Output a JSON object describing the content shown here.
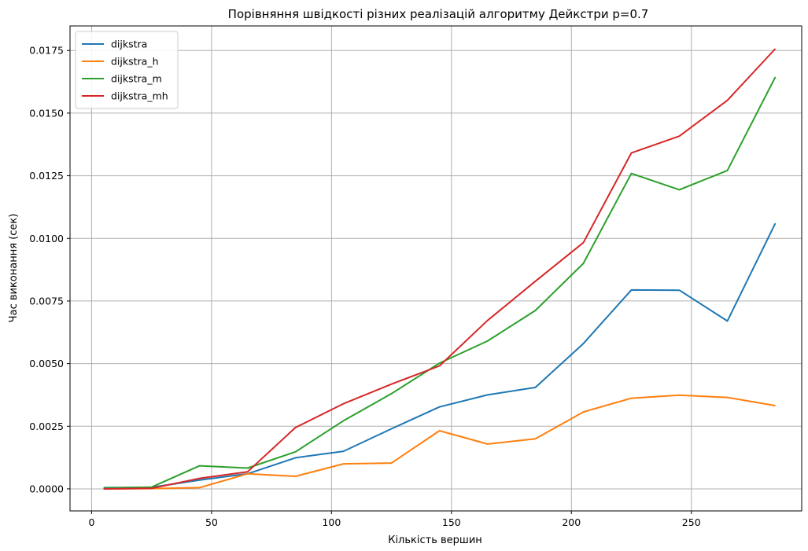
{
  "chart_data": {
    "type": "line",
    "title": "Порівняння швідкості різних реалізацій алгоритму Дейкстри p=0.7",
    "xlabel": "Кількість вершин",
    "ylabel": "Час виконання (сек)",
    "xlim": [
      -9,
      296
    ],
    "ylim": [
      -0.00088,
      0.01848
    ],
    "xticks": [
      0,
      50,
      100,
      150,
      200,
      250
    ],
    "xtick_labels": [
      "0",
      "50",
      "100",
      "150",
      "200",
      "250"
    ],
    "yticks": [
      0.0,
      0.0025,
      0.005,
      0.0075,
      0.01,
      0.0125,
      0.015,
      0.0175
    ],
    "ytick_labels": [
      "0.0000",
      "0.0025",
      "0.0050",
      "0.0075",
      "0.0100",
      "0.0125",
      "0.0150",
      "0.0175"
    ],
    "grid": true,
    "legend_position": "upper left",
    "x": [
      5,
      25,
      45,
      65,
      85,
      105,
      125,
      145,
      165,
      185,
      205,
      225,
      245,
      265,
      285
    ],
    "series": [
      {
        "name": "dijkstra",
        "color": "#1f77b4",
        "values": [
          5e-05,
          6e-05,
          0.00035,
          0.0006,
          0.00124,
          0.0015,
          0.0024,
          0.00327,
          0.00375,
          0.00405,
          0.0058,
          0.00794,
          0.00793,
          0.0067,
          0.0106
        ]
      },
      {
        "name": "dijkstra_h",
        "color": "#ff7f0e",
        "values": [
          0.0,
          1e-05,
          5e-05,
          0.0006,
          0.0005,
          0.001,
          0.00103,
          0.00232,
          0.00179,
          0.002,
          0.00307,
          0.00362,
          0.00374,
          0.00365,
          0.00332
        ]
      },
      {
        "name": "dijkstra_m",
        "color": "#2ca02c",
        "values": [
          3e-05,
          7e-05,
          0.00092,
          0.00083,
          0.00148,
          0.00272,
          0.0038,
          0.00502,
          0.0059,
          0.00712,
          0.009,
          0.01259,
          0.01194,
          0.01271,
          0.01644
        ]
      },
      {
        "name": "dijkstra_mh",
        "color": "#d62728",
        "values": [
          0.0,
          2e-05,
          0.00042,
          0.00068,
          0.00245,
          0.0034,
          0.00418,
          0.00491,
          0.00672,
          0.00829,
          0.00983,
          0.01341,
          0.01408,
          0.01551,
          0.01757
        ]
      }
    ]
  }
}
